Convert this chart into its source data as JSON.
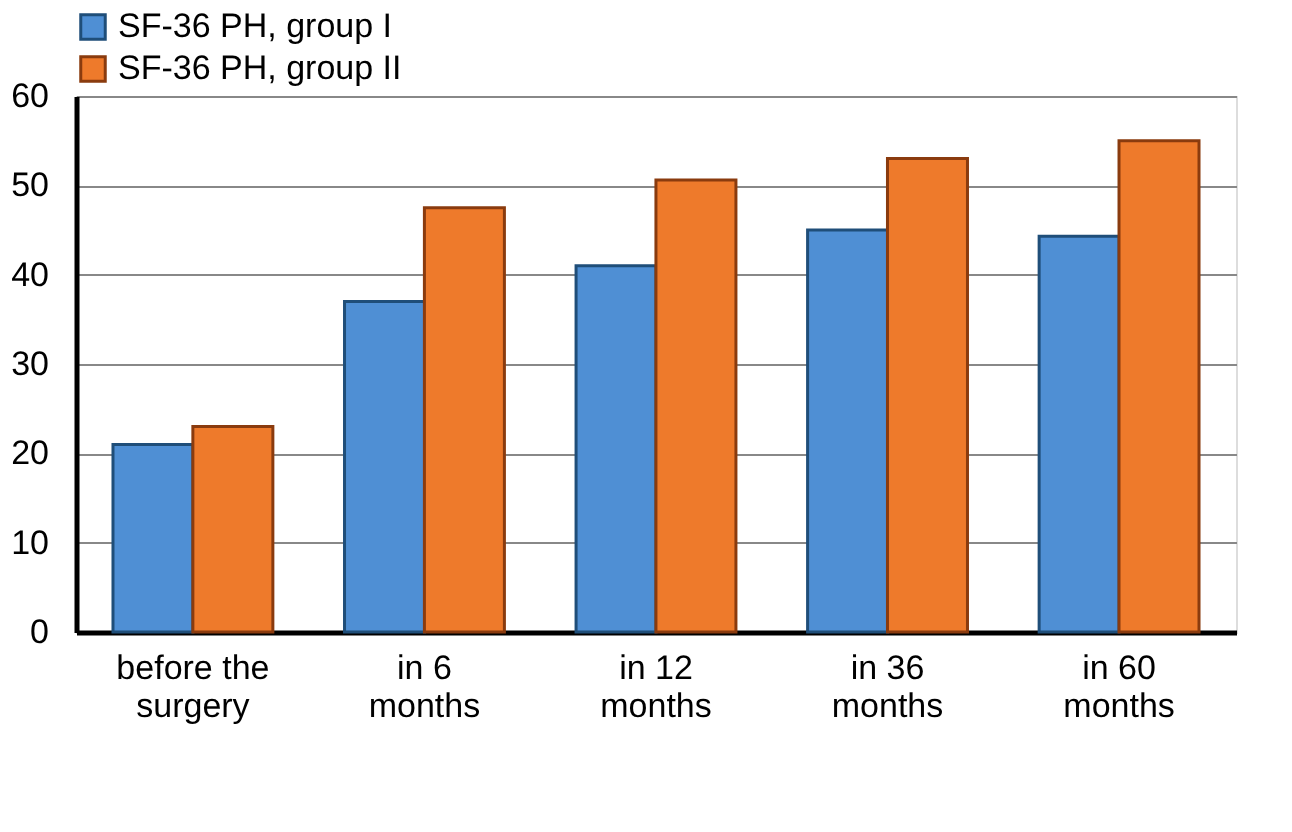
{
  "chart_data": {
    "type": "bar",
    "categories": [
      "before the surgery",
      "in 6 months",
      "in 12 months",
      "in 36 months",
      "in 60 months"
    ],
    "series": [
      {
        "name": "SF-36 PH, group I",
        "color": "#4f8fd4",
        "values": [
          21,
          37,
          41,
          45,
          44.3
        ]
      },
      {
        "name": "SF-36 PH, group II",
        "color": "#ee7a2b",
        "values": [
          23,
          47.5,
          50.6,
          53,
          55
        ]
      }
    ],
    "ylim": [
      0,
      60
    ],
    "yticks": [
      0,
      10,
      20,
      30,
      40,
      50,
      60
    ],
    "grid": "y",
    "legend": "top"
  }
}
